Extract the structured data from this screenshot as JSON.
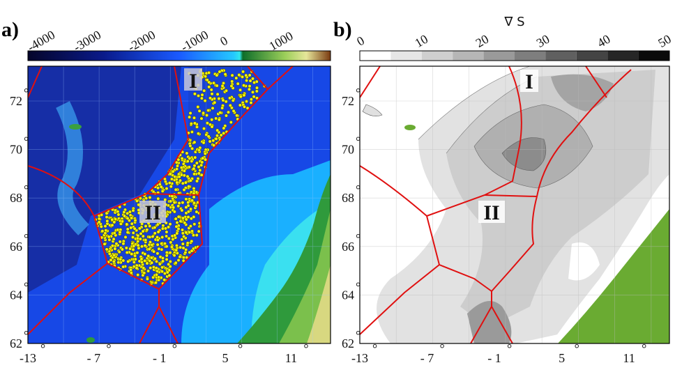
{
  "panels": [
    {
      "id": "a",
      "label": "a)",
      "colorbar": {
        "ticks": [
          "-4000",
          "-3000",
          "-2000",
          "-1000",
          "0",
          "1000"
        ],
        "colors": {
          "deep": "#0a0a3a",
          "mid": "#1030c8",
          "shallow": "#19a6ff",
          "coast": "#3fe3f0",
          "land_low": "#2e8b3a",
          "land_mid": "#c8c860",
          "land_high": "#8a4a1a"
        }
      },
      "region_labels": [
        "I",
        "II"
      ],
      "x_ticks": [
        "-13",
        "- 7",
        "- 1",
        "5",
        "11"
      ],
      "y_ticks": [
        "72",
        "70",
        "68",
        "66",
        "64",
        "62"
      ],
      "marker_color": "#f2f20a",
      "boundary_color": "#e01010"
    },
    {
      "id": "b",
      "label": "b)",
      "colorbar": {
        "title": "∇ S",
        "ticks": [
          "0",
          "10",
          "20",
          "30",
          "40",
          "50"
        ],
        "colors": [
          "#ffffff",
          "#e6e6e6",
          "#cfcfcf",
          "#b6b6b6",
          "#9a9a9a",
          "#7e7e7e",
          "#606060",
          "#444444",
          "#262626",
          "#0a0a0a"
        ]
      },
      "region_labels": [
        "I",
        "II"
      ],
      "x_ticks": [
        "-13",
        "- 7",
        "- 1",
        "5",
        "11"
      ],
      "y_ticks": [
        "72",
        "70",
        "68",
        "66",
        "64",
        "62"
      ],
      "land_color": "#6aab32",
      "boundary_color": "#e01010"
    }
  ],
  "degree_symbol": "°"
}
